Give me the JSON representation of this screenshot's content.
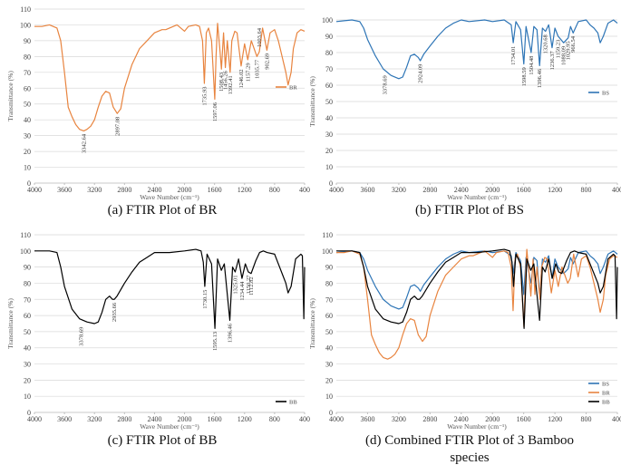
{
  "chart_data": [
    {
      "type": "line",
      "caption": [
        "(a)  FTIR Plot of BR"
      ],
      "x_label": "Wave Number (cm⁻¹)",
      "y_label": "Transmittance (%)",
      "xlim": [
        4000,
        400
      ],
      "xticks": [
        4000,
        3600,
        3200,
        2800,
        2400,
        2000,
        1600,
        1200,
        800,
        400
      ],
      "ylim": [
        0,
        110
      ],
      "yticks": [
        0,
        10,
        20,
        30,
        40,
        50,
        60,
        70,
        80,
        90,
        100,
        110
      ],
      "grid": true,
      "legend": "right",
      "series": [
        {
          "name": "BR",
          "color": "#e8843f",
          "x": [
            4000,
            3900,
            3800,
            3700,
            3650,
            3600,
            3550,
            3500,
            3450,
            3400,
            3342.64,
            3300,
            3250,
            3200,
            3150,
            3100,
            3050,
            3000,
            2950,
            2897.08,
            2850,
            2800,
            2700,
            2600,
            2500,
            2400,
            2300,
            2250,
            2100,
            2000,
            1950,
            1850,
            1800,
            1760,
            1735.93,
            1710,
            1680,
            1640,
            1597.06,
            1580,
            1560,
            1530,
            1508.43,
            1480,
            1456.26,
            1430,
            1392.41,
            1370,
            1330,
            1300,
            1246.02,
            1200,
            1157.29,
            1110,
            1035.77,
            1003.64,
            960,
            902.69,
            860,
            800,
            750,
            700,
            650,
            620,
            580,
            550,
            500,
            450,
            400
          ],
          "values": [
            99,
            99,
            100,
            98,
            90,
            70,
            48,
            42,
            37,
            34,
            33,
            34,
            36,
            40,
            48,
            55,
            58,
            57,
            48,
            44,
            47,
            60,
            75,
            85,
            90,
            95,
            97,
            97,
            100,
            96,
            99,
            100,
            99,
            90,
            63,
            95,
            98,
            90,
            53,
            80,
            101,
            85,
            72,
            95,
            73,
            90,
            70,
            90,
            96,
            95,
            74,
            88,
            78,
            90,
            80,
            83,
            98,
            84,
            95,
            97,
            90,
            80,
            70,
            62,
            70,
            85,
            95,
            97,
            96
          ]
        }
      ],
      "annotations": [
        {
          "label": "3342.64",
          "x": 3342.64,
          "y": 31
        },
        {
          "label": "2897.08",
          "x": 2897.08,
          "y": 42
        },
        {
          "label": "1735.93",
          "x": 1735.93,
          "y": 61
        },
        {
          "label": "1597.06",
          "x": 1597.06,
          "y": 51
        },
        {
          "label": "1508.43",
          "x": 1508.43,
          "y": 70
        },
        {
          "label": "1456.26",
          "x": 1456.26,
          "y": 71
        },
        {
          "label": "1392.41",
          "x": 1392.41,
          "y": 68
        },
        {
          "label": "1246.02",
          "x": 1246.02,
          "y": 72
        },
        {
          "label": "1157.29",
          "x": 1157.29,
          "y": 76
        },
        {
          "label": "1035.77",
          "x": 1035.77,
          "y": 78
        },
        {
          "label": "1003.64",
          "x": 1003.64,
          "y": 98
        },
        {
          "label": "902.69",
          "x": 902.69,
          "y": 82
        }
      ]
    },
    {
      "type": "line",
      "caption": [
        "(b)  FTIR Plot of BS"
      ],
      "x_label": "Wave Number (cm⁻¹)",
      "y_label": "Transmittance (%)",
      "xlim": [
        4000,
        400
      ],
      "xticks": [
        4000,
        3600,
        3200,
        2800,
        2400,
        2000,
        1600,
        1200,
        800,
        400
      ],
      "ylim": [
        0,
        100
      ],
      "yticks": [
        0,
        10,
        20,
        30,
        40,
        50,
        60,
        70,
        80,
        90,
        100
      ],
      "grid": true,
      "legend": "right",
      "series": [
        {
          "name": "BS",
          "color": "#2e75b6",
          "x": [
            4000,
            3800,
            3700,
            3650,
            3600,
            3500,
            3400,
            3300,
            3200,
            3150,
            3100,
            3050,
            3000,
            2950,
            2924.09,
            2880,
            2800,
            2700,
            2600,
            2500,
            2400,
            2300,
            2100,
            2000,
            1850,
            1760,
            1734.01,
            1700,
            1640,
            1598.59,
            1570,
            1504.48,
            1470,
            1430,
            1396.46,
            1360,
            1320.68,
            1280,
            1236.37,
            1200,
            1159.23,
            1088.09,
            1029.95,
            1000,
            966.54,
            900,
            800,
            750,
            700,
            650,
            620,
            580,
            520,
            450,
            400
          ],
          "values": [
            99,
            100,
            99,
            95,
            88,
            78,
            70,
            66,
            64,
            65,
            71,
            78,
            79,
            77,
            75,
            79,
            84,
            90,
            95,
            98,
            100,
            99,
            100,
            99,
            100,
            97,
            86,
            99,
            94,
            73,
            96,
            80,
            96,
            94,
            72,
            95,
            93,
            97,
            83,
            95,
            90,
            86,
            89,
            96,
            92,
            99,
            100,
            97,
            95,
            92,
            86,
            90,
            98,
            100,
            98
          ]
        }
      ],
      "annotations": [
        {
          "label": "3378.69",
          "x": 3378.69,
          "y": 66
        },
        {
          "label": "2924.09",
          "x": 2924.09,
          "y": 73
        },
        {
          "label": "1734.01",
          "x": 1734.01,
          "y": 84
        },
        {
          "label": "1598.59",
          "x": 1598.59,
          "y": 71
        },
        {
          "label": "1504.48",
          "x": 1504.48,
          "y": 78
        },
        {
          "label": "1396.46",
          "x": 1396.46,
          "y": 70
        },
        {
          "label": "1320.68",
          "x": 1320.68,
          "y": 91
        },
        {
          "label": "1236.37",
          "x": 1236.37,
          "y": 81
        },
        {
          "label": "1159.23",
          "x": 1159.23,
          "y": 88
        },
        {
          "label": "1088.09",
          "x": 1088.09,
          "y": 84
        },
        {
          "label": "1029.95",
          "x": 1029.95,
          "y": 87
        },
        {
          "label": "966.54",
          "x": 966.54,
          "y": 90
        }
      ]
    },
    {
      "type": "line",
      "caption": [
        "(c)  FTIR Plot of BB"
      ],
      "x_label": "Wave Number (cm⁻¹)",
      "y_label": "Transmittance (%)",
      "xlim": [
        4000,
        400
      ],
      "xticks": [
        4000,
        3600,
        3200,
        2800,
        2400,
        2000,
        1600,
        1200,
        800,
        400
      ],
      "ylim": [
        0,
        110
      ],
      "yticks": [
        0,
        10,
        20,
        30,
        40,
        50,
        60,
        70,
        80,
        90,
        100,
        110
      ],
      "grid": true,
      "legend": "lower right",
      "series": [
        {
          "name": "BB",
          "color": "#000000",
          "x": [
            4000,
            3800,
            3700,
            3650,
            3600,
            3500,
            3400,
            3300,
            3200,
            3150,
            3100,
            3050,
            3000,
            2960,
            2935.66,
            2900,
            2800,
            2700,
            2600,
            2500,
            2400,
            2200,
            2000,
            1850,
            1780,
            1750,
            1730.15,
            1700,
            1640,
            1595.13,
            1560,
            1510,
            1470,
            1396.46,
            1360,
            1325.01,
            1280,
            1234.44,
            1190,
            1150.27,
            1112.82,
            1050,
            1000,
            950,
            900,
            800,
            750,
            700,
            650,
            620,
            580,
            520,
            450,
            430,
            410,
            400
          ],
          "values": [
            100,
            100,
            99,
            90,
            78,
            64,
            58,
            56,
            55,
            56,
            62,
            70,
            72,
            70,
            70,
            72,
            80,
            87,
            93,
            96,
            99,
            99,
            100,
            101,
            100,
            93,
            78,
            98,
            92,
            52,
            95,
            88,
            92,
            57,
            90,
            87,
            95,
            83,
            92,
            87,
            86,
            94,
            99,
            100,
            99,
            98,
            92,
            86,
            80,
            74,
            78,
            95,
            98,
            97,
            58,
            90
          ]
        }
      ],
      "annotations": [
        {
          "label": "3378.69",
          "x": 3378.69,
          "y": 53
        },
        {
          "label": "2935.66",
          "x": 2935.66,
          "y": 68
        },
        {
          "label": "1730.15",
          "x": 1730.15,
          "y": 76
        },
        {
          "label": "1595.13",
          "x": 1595.13,
          "y": 50
        },
        {
          "label": "1396.46",
          "x": 1396.46,
          "y": 55
        },
        {
          "label": "1325.01",
          "x": 1325.01,
          "y": 85
        },
        {
          "label": "1234.44",
          "x": 1234.44,
          "y": 81
        },
        {
          "label": "1150.27",
          "x": 1150.27,
          "y": 85
        },
        {
          "label": "1112.82",
          "x": 1112.82,
          "y": 84
        }
      ]
    },
    {
      "type": "line",
      "caption": [
        "(d)  Combined FTIR Plot of 3 Bamboo",
        "species"
      ],
      "x_label": "Wave Number (cm⁻¹)",
      "y_label": "Transmittance (%)",
      "xlim": [
        4000,
        400
      ],
      "xticks": [
        4000,
        3600,
        3200,
        2800,
        2400,
        2000,
        1600,
        1200,
        800,
        400
      ],
      "ylim": [
        0,
        110
      ],
      "yticks": [
        0,
        10,
        20,
        30,
        40,
        50,
        60,
        70,
        80,
        90,
        100,
        110
      ],
      "grid": true,
      "legend": "lower right",
      "series": [
        {
          "name": "BS",
          "color": "#2e75b6",
          "x": [
            4000,
            3800,
            3700,
            3650,
            3600,
            3500,
            3400,
            3300,
            3200,
            3150,
            3100,
            3050,
            3000,
            2950,
            2924.09,
            2880,
            2800,
            2700,
            2600,
            2500,
            2400,
            2300,
            2100,
            2000,
            1850,
            1760,
            1734.01,
            1700,
            1640,
            1598.59,
            1570,
            1504.48,
            1470,
            1430,
            1396.46,
            1360,
            1320.68,
            1280,
            1236.37,
            1200,
            1159.23,
            1088.09,
            1029.95,
            1000,
            966.54,
            900,
            800,
            750,
            700,
            650,
            620,
            580,
            520,
            450,
            400
          ],
          "values": [
            99,
            100,
            99,
            95,
            88,
            78,
            70,
            66,
            64,
            65,
            71,
            78,
            79,
            77,
            75,
            79,
            84,
            90,
            95,
            98,
            100,
            99,
            100,
            99,
            100,
            97,
            86,
            99,
            94,
            73,
            96,
            80,
            96,
            94,
            72,
            95,
            93,
            97,
            83,
            95,
            90,
            86,
            89,
            96,
            92,
            99,
            100,
            97,
            95,
            92,
            86,
            90,
            98,
            100,
            98
          ]
        },
        {
          "name": "BR",
          "color": "#e8843f",
          "x": [
            4000,
            3900,
            3800,
            3700,
            3650,
            3600,
            3550,
            3500,
            3450,
            3400,
            3342.64,
            3300,
            3250,
            3200,
            3150,
            3100,
            3050,
            3000,
            2950,
            2897.08,
            2850,
            2800,
            2700,
            2600,
            2500,
            2400,
            2300,
            2250,
            2100,
            2000,
            1950,
            1850,
            1800,
            1760,
            1735.93,
            1710,
            1680,
            1640,
            1597.06,
            1580,
            1560,
            1530,
            1508.43,
            1480,
            1456.26,
            1430,
            1392.41,
            1370,
            1330,
            1300,
            1246.02,
            1200,
            1157.29,
            1110,
            1035.77,
            1003.64,
            960,
            902.69,
            860,
            800,
            750,
            700,
            650,
            620,
            580,
            550,
            500,
            450,
            400
          ],
          "values": [
            99,
            99,
            100,
            98,
            90,
            70,
            48,
            42,
            37,
            34,
            33,
            34,
            36,
            40,
            48,
            55,
            58,
            57,
            48,
            44,
            47,
            60,
            75,
            85,
            90,
            95,
            97,
            97,
            100,
            96,
            99,
            100,
            99,
            90,
            63,
            95,
            98,
            90,
            53,
            80,
            101,
            85,
            72,
            95,
            73,
            90,
            70,
            90,
            96,
            95,
            74,
            88,
            78,
            90,
            80,
            83,
            98,
            84,
            95,
            97,
            90,
            80,
            70,
            62,
            70,
            85,
            95,
            97,
            96
          ]
        },
        {
          "name": "BB",
          "color": "#000000",
          "x": [
            4000,
            3800,
            3700,
            3650,
            3600,
            3500,
            3400,
            3300,
            3200,
            3150,
            3100,
            3050,
            3000,
            2960,
            2935.66,
            2900,
            2800,
            2700,
            2600,
            2500,
            2400,
            2200,
            2000,
            1850,
            1780,
            1750,
            1730.15,
            1700,
            1640,
            1595.13,
            1560,
            1510,
            1470,
            1396.46,
            1360,
            1325.01,
            1280,
            1234.44,
            1190,
            1150.27,
            1112.82,
            1050,
            1000,
            950,
            900,
            800,
            750,
            700,
            650,
            620,
            580,
            520,
            450,
            430,
            410,
            400
          ],
          "values": [
            100,
            100,
            99,
            90,
            78,
            64,
            58,
            56,
            55,
            56,
            62,
            70,
            72,
            70,
            70,
            72,
            80,
            87,
            93,
            96,
            99,
            99,
            100,
            101,
            100,
            93,
            78,
            98,
            92,
            52,
            95,
            88,
            92,
            57,
            90,
            87,
            95,
            83,
            92,
            87,
            86,
            94,
            99,
            100,
            99,
            98,
            92,
            86,
            80,
            74,
            78,
            95,
            98,
            97,
            58,
            90
          ]
        }
      ]
    }
  ]
}
